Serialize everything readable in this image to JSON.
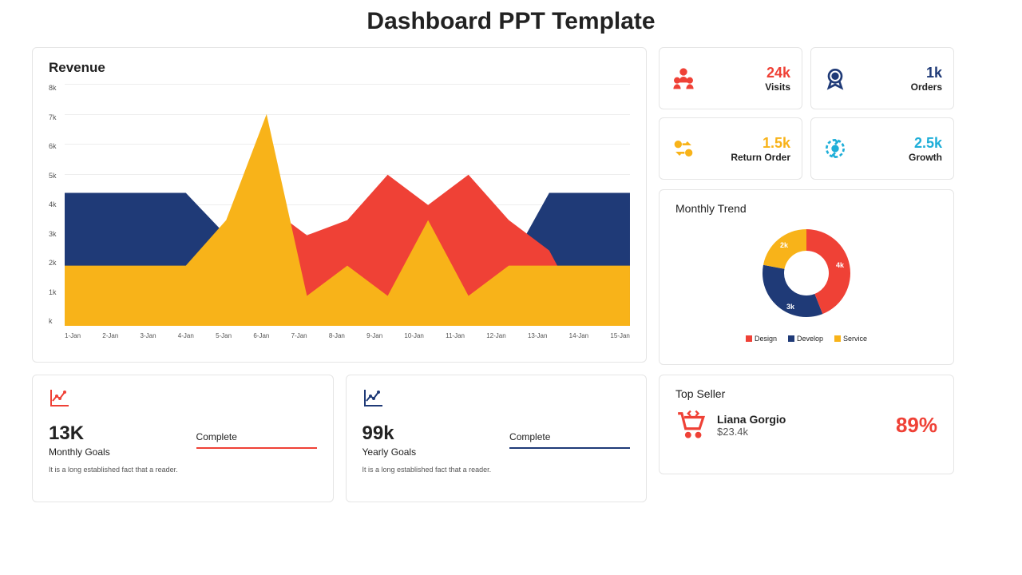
{
  "title": "Dashboard PPT Template",
  "colors": {
    "red": "#ef4136",
    "navy": "#1f3a77",
    "yellow": "#f8b319",
    "cyan": "#1eaed8",
    "border": "#e5e5e5"
  },
  "revenue": {
    "title": "Revenue",
    "type": "area",
    "ylim": [
      0,
      8
    ],
    "yticks": [
      "8k",
      "7k",
      "6k",
      "5k",
      "4k",
      "3k",
      "2k",
      "1k",
      "k"
    ],
    "xlabels": [
      "1-Jan",
      "2-Jan",
      "3-Jan",
      "4-Jan",
      "5-Jan",
      "6-Jan",
      "7-Jan",
      "8-Jan",
      "9-Jan",
      "10-Jan",
      "11-Jan",
      "12-Jan",
      "13-Jan",
      "14-Jan",
      "15-Jan"
    ],
    "series": [
      {
        "name": "navy",
        "color": "#1f3a77",
        "values": [
          4.4,
          4.4,
          4.4,
          4.4,
          3.0,
          4.0,
          2.5,
          1.0,
          2.0,
          2.0,
          2.5,
          2.0,
          4.4,
          4.4,
          4.4
        ]
      },
      {
        "name": "red",
        "color": "#ef4136",
        "values": [
          0,
          0,
          0,
          0,
          3.2,
          4.0,
          3.0,
          3.5,
          5.0,
          4.0,
          5.0,
          3.5,
          2.5,
          0,
          0
        ]
      },
      {
        "name": "yellow",
        "color": "#f8b319",
        "values": [
          2.0,
          2.0,
          2.0,
          2.0,
          3.5,
          7.0,
          1.0,
          2.0,
          1.0,
          3.5,
          1.0,
          2.0,
          2.0,
          2.0,
          2.0
        ]
      }
    ]
  },
  "stats": [
    {
      "icon": "people",
      "icon_color": "#ef4136",
      "value": "24k",
      "value_color": "#ef4136",
      "label": "Visits"
    },
    {
      "icon": "badge",
      "icon_color": "#1f3a77",
      "value": "1k",
      "value_color": "#1f3a77",
      "label": "Orders"
    },
    {
      "icon": "exchange",
      "icon_color": "#f8b319",
      "value": "1.5k",
      "value_color": "#f8b319",
      "label": "Return Order"
    },
    {
      "icon": "growth",
      "icon_color": "#1eaed8",
      "value": "2.5k",
      "value_color": "#1eaed8",
      "label": "Growth"
    }
  ],
  "donut": {
    "title": "Monthly Trend",
    "slices": [
      {
        "label": "4k",
        "color": "#ef4136",
        "pct": 44
      },
      {
        "label": "3k",
        "color": "#1f3a77",
        "pct": 34
      },
      {
        "label": "2k",
        "color": "#f8b319",
        "pct": 22
      }
    ],
    "legend": [
      {
        "label": "Design",
        "color": "#ef4136"
      },
      {
        "label": "Develop",
        "color": "#1f3a77"
      },
      {
        "label": "Service",
        "color": "#f8b319"
      }
    ]
  },
  "goals": [
    {
      "icon_color": "#ef4136",
      "value": "13K",
      "label": "Monthly Goals",
      "status": "Complete",
      "bar_color": "#ef4136",
      "desc": "It is a long established fact that a reader."
    },
    {
      "icon_color": "#1f3a77",
      "value": "99k",
      "label": "Yearly Goals",
      "status": "Complete",
      "bar_color": "#1f3a77",
      "desc": "It is a long established fact that a reader."
    }
  ],
  "seller": {
    "title": "Top Seller",
    "icon_color": "#ef4136",
    "name": "Liana Gorgio",
    "amount": "$23.4k",
    "pct": "89%",
    "pct_color": "#ef4136"
  }
}
